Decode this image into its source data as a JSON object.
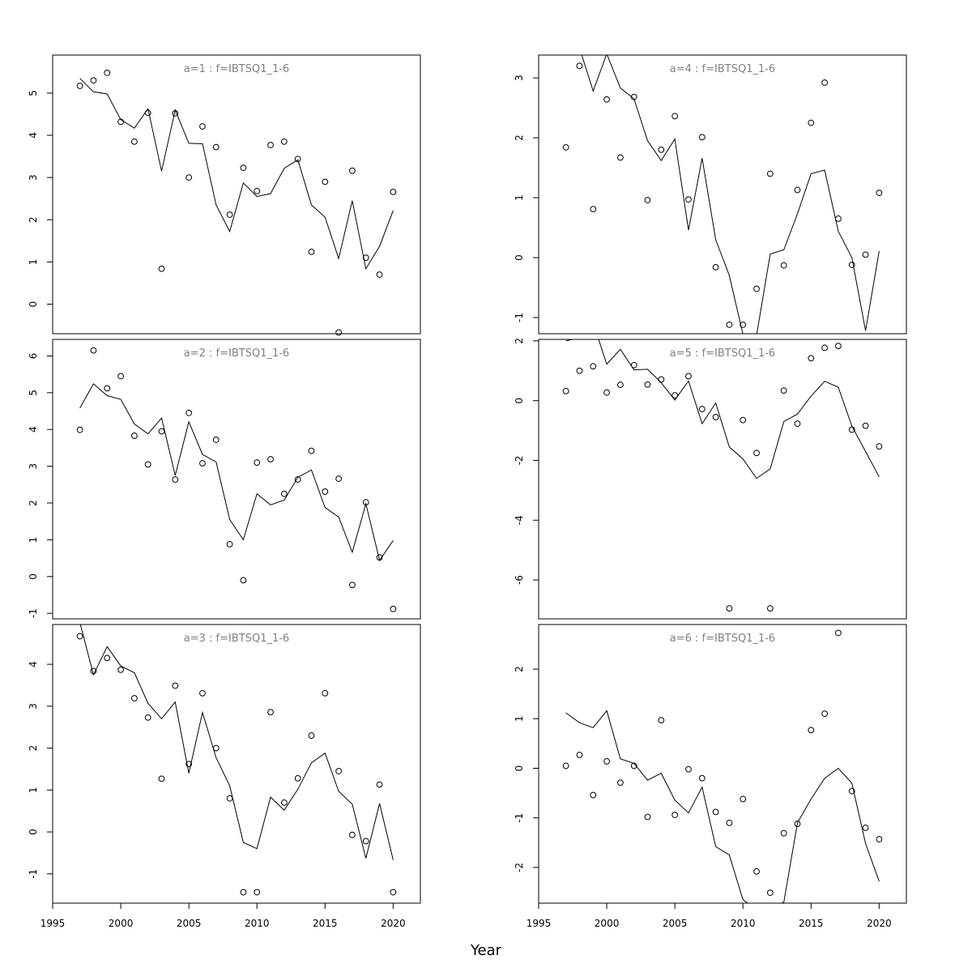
{
  "chart_data": {
    "type": "line",
    "xlabel": "Year",
    "xlim": [
      1995,
      2022
    ],
    "x_ticks": [
      1995,
      2000,
      2005,
      2010,
      2015,
      2020
    ],
    "years": [
      1997,
      1998,
      1999,
      2000,
      2001,
      2002,
      2003,
      2004,
      2005,
      2006,
      2007,
      2008,
      2009,
      2010,
      2011,
      2012,
      2013,
      2014,
      2015,
      2016,
      2017,
      2018,
      2019,
      2020
    ],
    "panels": [
      {
        "title": "a=1 : f=IBTSQ1_1-6",
        "ylim": [
          -0.7,
          5.9
        ],
        "y_ticks": [
          0,
          1,
          2,
          3,
          4,
          5
        ],
        "fitted": [
          5.35,
          5.03,
          4.98,
          4.37,
          4.17,
          4.63,
          3.15,
          4.6,
          3.81,
          3.8,
          2.35,
          1.72,
          2.87,
          2.55,
          2.62,
          3.22,
          3.42,
          2.35,
          2.06,
          1.08,
          2.45,
          0.84,
          1.37,
          2.22
        ],
        "observed": [
          5.17,
          5.3,
          5.48,
          4.32,
          3.85,
          4.53,
          0.84,
          4.52,
          3.0,
          4.21,
          3.72,
          2.12,
          3.23,
          2.68,
          3.77,
          3.85,
          3.44,
          1.24,
          2.9,
          -0.67,
          3.16,
          1.1,
          0.7,
          2.66
        ]
      },
      {
        "title": "a=2 : f=IBTSQ1_1-6",
        "ylim": [
          -1.15,
          6.45
        ],
        "y_ticks": [
          -1,
          0,
          1,
          2,
          3,
          4,
          5,
          6
        ],
        "fitted": [
          4.58,
          5.24,
          4.92,
          4.82,
          4.15,
          3.88,
          4.31,
          2.75,
          4.21,
          3.32,
          3.12,
          1.55,
          1.0,
          2.25,
          1.95,
          2.08,
          2.7,
          2.9,
          1.88,
          1.62,
          0.66,
          1.98,
          0.44,
          0.98
        ],
        "observed": [
          3.99,
          6.15,
          5.12,
          5.45,
          3.83,
          3.05,
          3.95,
          2.64,
          4.45,
          3.08,
          3.72,
          0.88,
          -0.1,
          3.1,
          3.19,
          2.25,
          2.64,
          3.42,
          2.31,
          2.66,
          -0.23,
          2.02,
          0.52,
          -0.88
        ]
      },
      {
        "title": "a=3 : f=IBTSQ1_1-6",
        "ylim": [
          -1.7,
          4.95
        ],
        "y_ticks": [
          -1,
          0,
          1,
          2,
          3,
          4
        ],
        "fitted": [
          5.0,
          3.75,
          4.42,
          3.96,
          3.8,
          3.07,
          2.7,
          3.1,
          1.4,
          2.85,
          1.77,
          1.1,
          -0.25,
          -0.4,
          0.83,
          0.52,
          1.02,
          1.65,
          1.88,
          0.97,
          0.66,
          -0.63,
          0.68,
          -0.67
        ],
        "observed": [
          4.67,
          3.84,
          4.15,
          3.87,
          3.19,
          2.73,
          1.27,
          3.49,
          1.62,
          3.31,
          2.0,
          0.8,
          -1.44,
          -1.44,
          2.86,
          0.7,
          1.28,
          2.3,
          3.31,
          1.45,
          -0.07,
          -0.22,
          1.13,
          -1.44
        ]
      },
      {
        "title": "a=4 : f=IBTSQ1_1-6",
        "ylim": [
          -1.27,
          3.38
        ],
        "y_ticks": [
          -1,
          0,
          1,
          2,
          3
        ],
        "fitted": [
          3.6,
          3.5,
          2.78,
          3.4,
          2.83,
          2.65,
          1.95,
          1.62,
          1.98,
          0.46,
          1.66,
          0.3,
          -0.3,
          -1.28,
          -1.3,
          0.06,
          0.13,
          0.73,
          1.4,
          1.46,
          0.44,
          0.0,
          -1.22,
          0.11
        ],
        "observed": [
          1.84,
          3.2,
          0.81,
          2.64,
          1.67,
          2.68,
          0.96,
          1.8,
          2.36,
          0.97,
          2.01,
          -0.16,
          -1.12,
          -1.12,
          -0.52,
          1.4,
          -0.13,
          1.13,
          2.25,
          2.92,
          0.65,
          -0.12,
          0.05,
          1.08
        ]
      },
      {
        "title": "a=5 : f=IBTSQ1_1-6",
        "ylim": [
          -7.3,
          2.05
        ],
        "y_ticks": [
          -6,
          -4,
          -2,
          0,
          2
        ],
        "fitted": [
          2.0,
          2.1,
          2.6,
          1.22,
          1.72,
          1.03,
          1.05,
          0.6,
          0.02,
          0.66,
          -0.77,
          -0.08,
          -1.55,
          -1.95,
          -2.6,
          -2.28,
          -0.7,
          -0.45,
          0.15,
          0.65,
          0.45,
          -0.85,
          -1.7,
          -2.55
        ],
        "observed": [
          0.32,
          1.0,
          1.15,
          0.27,
          0.53,
          1.19,
          0.54,
          0.71,
          0.18,
          0.82,
          -0.28,
          -0.55,
          -6.95,
          -0.65,
          -1.75,
          -6.95,
          0.34,
          -0.77,
          1.42,
          1.77,
          1.83,
          -0.97,
          -0.84,
          -1.53
        ]
      },
      {
        "title": "a=6 : f=IBTSQ1_1-6",
        "ylim": [
          -2.72,
          2.9
        ],
        "y_ticks": [
          -2,
          -1,
          0,
          1,
          2
        ],
        "fitted": [
          1.12,
          0.92,
          0.82,
          1.16,
          0.19,
          0.1,
          -0.24,
          -0.1,
          -0.64,
          -0.9,
          -0.38,
          -1.58,
          -1.75,
          -2.65,
          -2.85,
          -2.82,
          -2.7,
          -1.1,
          -0.62,
          -0.2,
          0.0,
          -0.3,
          -1.52,
          -2.28
        ],
        "observed": [
          0.05,
          0.27,
          -0.54,
          0.14,
          -0.29,
          0.05,
          -0.98,
          0.97,
          -0.94,
          -0.02,
          -0.2,
          -0.88,
          -1.1,
          -0.62,
          -2.08,
          -2.51,
          -1.31,
          -1.12,
          0.77,
          1.1,
          2.73,
          -0.46,
          -1.2,
          -1.43
        ]
      }
    ]
  }
}
